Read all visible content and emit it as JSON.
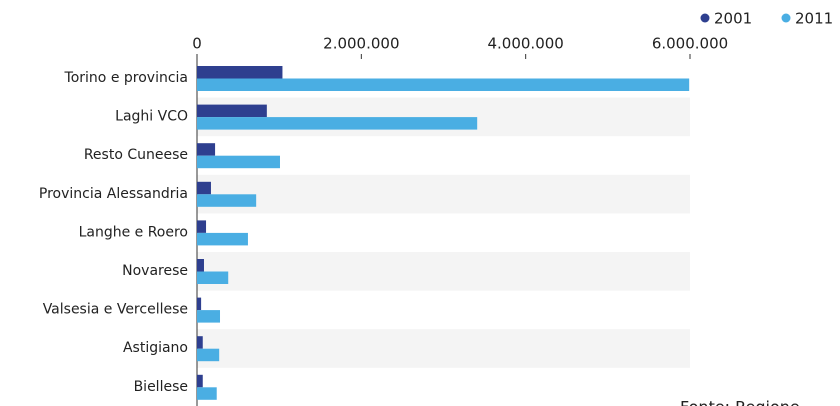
{
  "chart_data": {
    "type": "bar",
    "orientation": "horizontal",
    "categories": [
      "Torino e provincia",
      "Laghi VCO",
      "Resto Cuneese",
      "Provincia Alessandria",
      "Langhe e Roero",
      "Novarese",
      "Valsesia e Vercellese",
      "Astigiano",
      "Biellese"
    ],
    "series": [
      {
        "name": "2001",
        "color": "#2e3f8f",
        "values": [
          1040000,
          850000,
          220000,
          170000,
          110000,
          85000,
          50000,
          70000,
          70000
        ]
      },
      {
        "name": "2011",
        "color": "#4aaee3",
        "values": [
          5990000,
          3410000,
          1010000,
          720000,
          620000,
          380000,
          280000,
          270000,
          240000
        ]
      }
    ],
    "xlim": [
      0,
      6000000
    ],
    "xticks": [
      0,
      {
        "value": 2000000,
        "label": "2.000.000"
      },
      {
        "value": 4000000,
        "label": "4.000.000"
      },
      {
        "value": 6000000,
        "label": "6.000.000"
      }
    ],
    "legend": "top-right",
    "source": "Fonte: Regione"
  }
}
